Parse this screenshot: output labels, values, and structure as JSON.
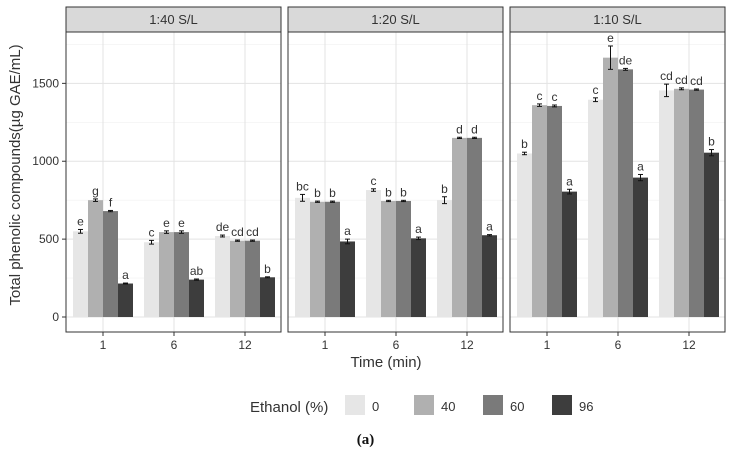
{
  "caption": "(a)",
  "chart_data": {
    "type": "bar",
    "ylabel": "Total phenolic compounds(µg GAE/mL)",
    "xlabel": "Time (min)",
    "ylim": [
      0,
      1820
    ],
    "yticks": [
      0,
      500,
      1000,
      1500
    ],
    "grid": true,
    "legend": {
      "title": "Ethanol (%)",
      "position": "bottom",
      "entries": [
        "0",
        "40",
        "60",
        "96"
      ],
      "colors": [
        "#e6e6e6",
        "#b0b0b0",
        "#7a7a7a",
        "#3d3d3d"
      ]
    },
    "panels": [
      {
        "title": "1:40 S/L",
        "categories": [
          "1",
          "6",
          "12"
        ],
        "series": [
          {
            "values": [
              550,
              480,
              520
            ],
            "errors": [
              12,
              12,
              6
            ],
            "letters": [
              "e",
              "c",
              "de"
            ]
          },
          {
            "values": [
              750,
              545,
              490
            ],
            "errors": [
              8,
              8,
              4
            ],
            "letters": [
              "g",
              "e",
              "cd"
            ]
          },
          {
            "values": [
              680,
              545,
              490
            ],
            "errors": [
              4,
              8,
              4
            ],
            "letters": [
              "f",
              "e",
              "cd"
            ]
          },
          {
            "values": [
              215,
              240,
              255
            ],
            "errors": [
              3,
              4,
              3
            ],
            "letters": [
              "a",
              "ab",
              "b"
            ]
          }
        ]
      },
      {
        "title": "1:20 S/L",
        "categories": [
          "1",
          "6",
          "12"
        ],
        "series": [
          {
            "values": [
              765,
              815,
              750
            ],
            "errors": [
              22,
              8,
              22
            ],
            "letters": [
              "bc",
              "c",
              "b"
            ]
          },
          {
            "values": [
              740,
              745,
              1150
            ],
            "errors": [
              4,
              4,
              4
            ],
            "letters": [
              "b",
              "b",
              "d"
            ]
          },
          {
            "values": [
              740,
              745,
              1150
            ],
            "errors": [
              4,
              4,
              4
            ],
            "letters": [
              "b",
              "b",
              "d"
            ]
          },
          {
            "values": [
              485,
              505,
              525
            ],
            "errors": [
              15,
              8,
              4
            ],
            "letters": [
              "a",
              "a",
              "a"
            ]
          }
        ]
      },
      {
        "title": "1:10 S/L",
        "categories": [
          "1",
          "6",
          "12"
        ],
        "series": [
          {
            "values": [
              1050,
              1395,
              1455
            ],
            "errors": [
              8,
              12,
              40
            ],
            "letters": [
              "b",
              "c",
              "cd"
            ]
          },
          {
            "values": [
              1360,
              1665,
              1465
            ],
            "errors": [
              8,
              75,
              6
            ],
            "letters": [
              "c",
              "e",
              "cd"
            ]
          },
          {
            "values": [
              1355,
              1590,
              1460
            ],
            "errors": [
              6,
              6,
              4
            ],
            "letters": [
              "c",
              "de",
              "cd"
            ]
          },
          {
            "values": [
              805,
              895,
              1055
            ],
            "errors": [
              15,
              20,
              20
            ],
            "letters": [
              "a",
              "a",
              "b"
            ]
          }
        ]
      }
    ]
  }
}
